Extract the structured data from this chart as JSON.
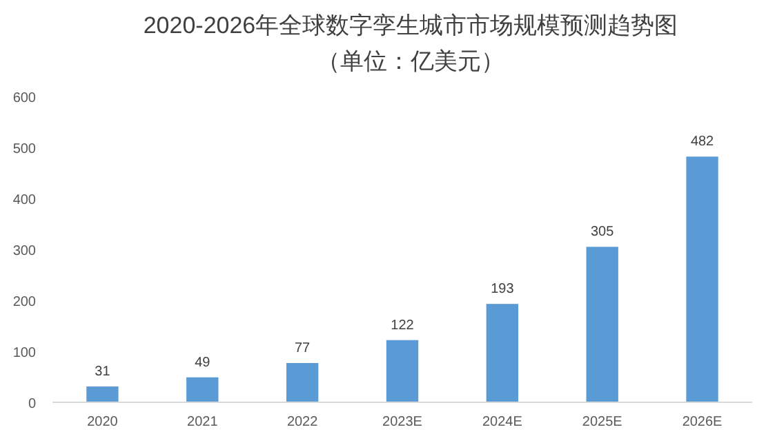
{
  "chart_data": {
    "type": "bar",
    "title": "2020-2026年全球数字孪生城市市场规模预测趋势图",
    "subtitle": "（单位：亿美元）",
    "categories": [
      "2020",
      "2021",
      "2022",
      "2023E",
      "2024E",
      "2025E",
      "2026E"
    ],
    "values": [
      31,
      49,
      77,
      122,
      193,
      305,
      482
    ],
    "color": "#5b9bd5",
    "ylim": [
      0,
      600
    ],
    "yticks": [
      0,
      100,
      200,
      300,
      400,
      500,
      600
    ],
    "data_labels": true
  }
}
